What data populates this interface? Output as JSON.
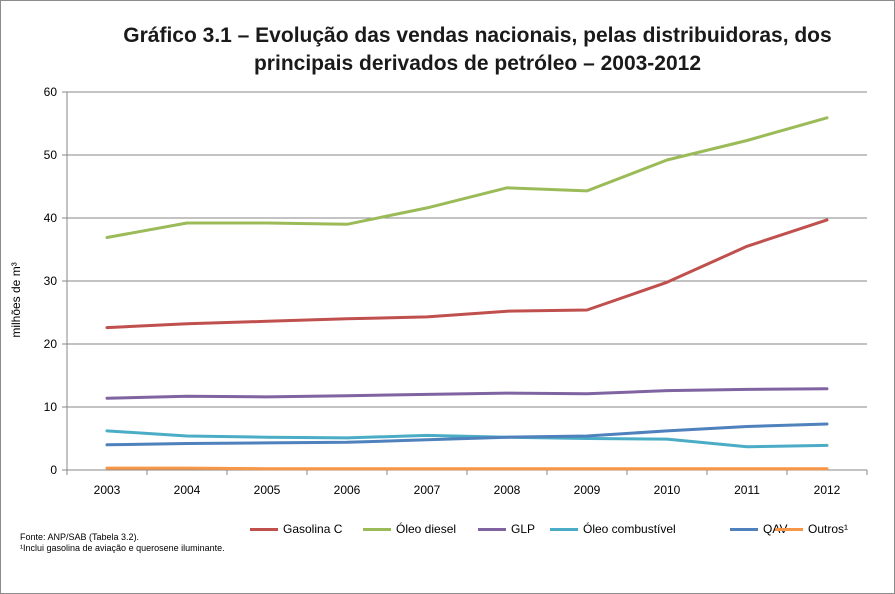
{
  "chart_data": {
    "type": "line",
    "title_line1": "Gráfico 3.1 – Evolução das vendas nacionais, pelas distribuidoras, dos",
    "title_line2": "principais derivados de petróleo – 2003-2012",
    "xlabel": "",
    "ylabel": "milhões de m³",
    "ylim": [
      0,
      60
    ],
    "yticks": [
      "0",
      "10",
      "20",
      "30",
      "40",
      "50",
      "60"
    ],
    "categories": [
      "2003",
      "2004",
      "2005",
      "2006",
      "2007",
      "2008",
      "2009",
      "2010",
      "2011",
      "2012"
    ],
    "grid": true,
    "legend_position": "bottom",
    "series": [
      {
        "name": "Gasolina C",
        "color": "#c0504d",
        "values": [
          22.6,
          23.2,
          23.6,
          24.0,
          24.3,
          25.2,
          25.4,
          29.8,
          35.5,
          39.7
        ]
      },
      {
        "name": "Óleo diesel",
        "color": "#9bbb59",
        "values": [
          36.9,
          39.2,
          39.2,
          39.0,
          41.6,
          44.8,
          44.3,
          49.2,
          52.3,
          55.9
        ]
      },
      {
        "name": "GLP",
        "color": "#8064a2",
        "values": [
          11.4,
          11.7,
          11.6,
          11.8,
          12.0,
          12.2,
          12.1,
          12.6,
          12.8,
          12.9
        ]
      },
      {
        "name": "Óleo combustível",
        "color": "#4bacc6",
        "values": [
          6.2,
          5.4,
          5.2,
          5.1,
          5.5,
          5.2,
          5.0,
          4.9,
          3.7,
          3.9
        ]
      },
      {
        "name": "QAV",
        "color": "#4f81bd",
        "values": [
          4.0,
          4.2,
          4.3,
          4.4,
          4.8,
          5.2,
          5.4,
          6.2,
          6.9,
          7.3
        ]
      },
      {
        "name": "Outros¹",
        "color": "#f79646",
        "values": [
          0.3,
          0.3,
          0.2,
          0.2,
          0.2,
          0.2,
          0.2,
          0.2,
          0.2,
          0.2
        ]
      }
    ]
  },
  "footer": {
    "source": "Fonte: ANP/SAB (Tabela 3.2).",
    "note": "¹Inclui gasolina de aviação e querosene iluminante."
  }
}
